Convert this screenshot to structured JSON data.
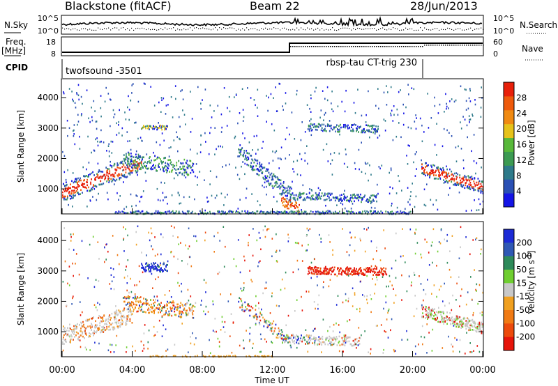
{
  "header": {
    "station": "Blackstone (fitACF)",
    "beam": "Beam 22",
    "date": "28/Jun/2013"
  },
  "top_panels": {
    "nsky_label": "N.Sky",
    "nsky_ticks": [
      "10^5",
      "10^0"
    ],
    "nsearch_label": "N.Search",
    "nsearch_ticks": [
      "10^5",
      "10^0"
    ],
    "freq_label": "Freq.",
    "freq_unit": "[MHz]",
    "freq_ticks": [
      "18",
      "8"
    ],
    "nave_label": "Nave",
    "nave_ticks": [
      "60",
      "0"
    ],
    "cpid_label": "CPID",
    "cpid_segments": [
      "twofsound -3501",
      "rbsp-tau CT-trig 230"
    ]
  },
  "colors": {
    "power": [
      "#1414e6",
      "#2a50b4",
      "#2e7a8a",
      "#3c9a52",
      "#58b83a",
      "#e6c21a",
      "#f08a12",
      "#ee5a0c",
      "#e8200a"
    ],
    "velocity": [
      "#1c2ad6",
      "#2f58b4",
      "#2e8a5a",
      "#6fce30",
      "#c8c8c8",
      "#f0a020",
      "#f07a14",
      "#ec4a0c",
      "#e6140a"
    ]
  },
  "chart_data": [
    {
      "type": "heatmap",
      "name": "Power panel",
      "xlabel": "",
      "ylabel": "Slant Range [km]",
      "xlim": [
        0,
        24
      ],
      "ylim": [
        200,
        4600
      ],
      "yticks": [
        "1000",
        "2000",
        "3000",
        "4000"
      ],
      "colorbar_label": "Power [dB]",
      "colorbar_ticks": [
        "4",
        "8",
        "12",
        "16",
        "20",
        "24",
        "28"
      ]
    },
    {
      "type": "heatmap",
      "name": "Velocity panel",
      "xlabel": "Time UT",
      "ylabel": "Slant Range [km]",
      "xlim": [
        0,
        24
      ],
      "ylim": [
        200,
        4600
      ],
      "xticks": [
        "00:00",
        "04:00",
        "08:00",
        "12:00",
        "16:00",
        "20:00",
        "00:00"
      ],
      "yticks": [
        "1000",
        "2000",
        "3000",
        "4000"
      ],
      "colorbar_label": "Velocity [m s",
      "colorbar_label_sup": "-1",
      "colorbar_label_end": "]",
      "colorbar_ticks": [
        "200",
        "100",
        "50",
        "15",
        "-15",
        "-50",
        "-100",
        "-200"
      ]
    }
  ]
}
